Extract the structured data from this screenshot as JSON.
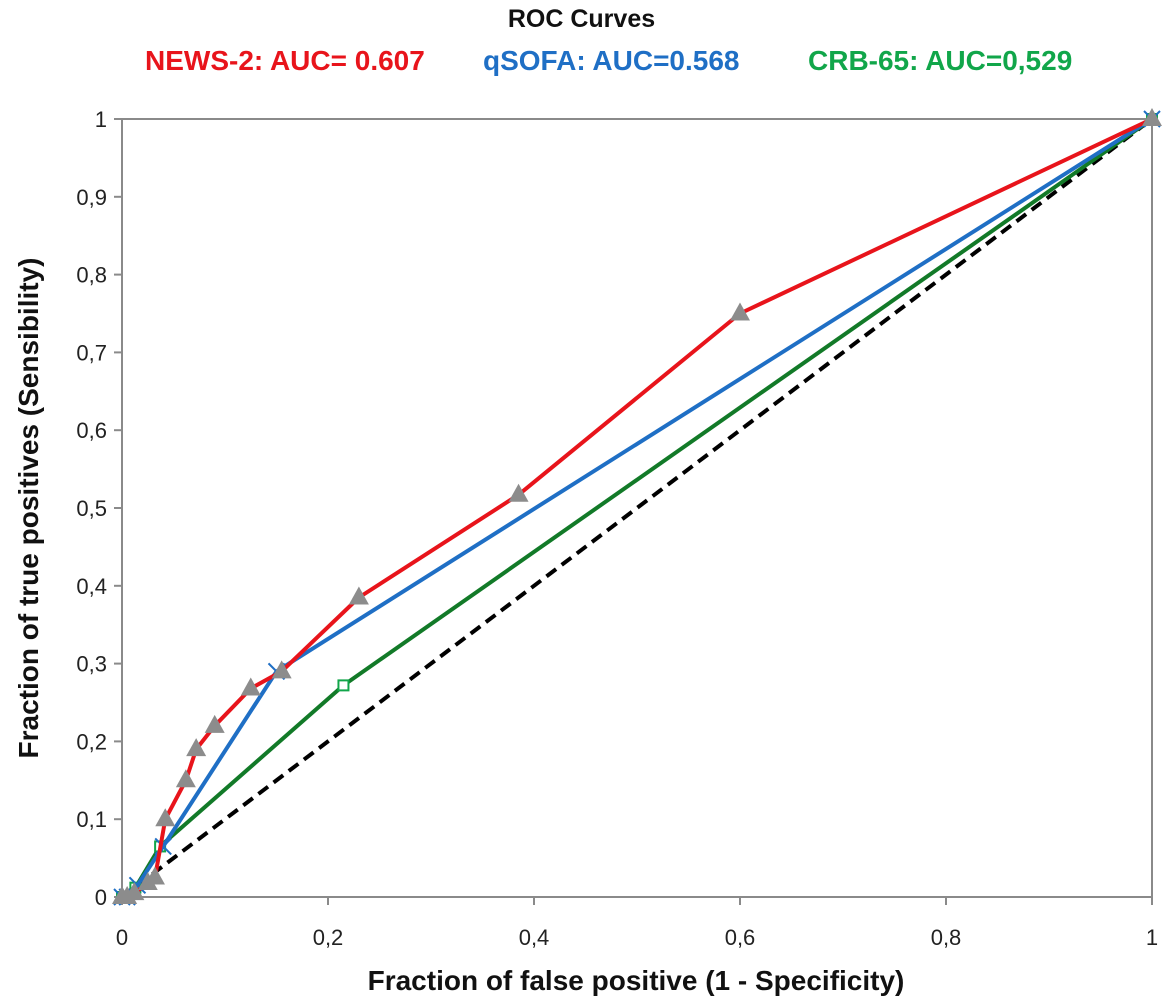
{
  "title": "ROC Curves",
  "subtitles": [
    {
      "text": "NEWS-2: AUC= 0.607",
      "color": "#e8141b"
    },
    {
      "text": "qSOFA: AUC=0.568",
      "color": "#1f6fc5"
    },
    {
      "text": "CRB-65: AUC=0,529",
      "color": "#11a64a"
    }
  ],
  "chart_data": {
    "type": "line",
    "title": "ROC Curves",
    "xlabel": "Fraction of false positive (1 - Specificity)",
    "ylabel": "Fraction of true positives (Sensibility)",
    "xlim": [
      0,
      1
    ],
    "ylim": [
      0,
      1
    ],
    "x_ticks": [
      "0",
      "0,2",
      "0,4",
      "0,6",
      "0,8",
      "1"
    ],
    "y_ticks": [
      "0",
      "0,1",
      "0,2",
      "0,3",
      "0,4",
      "0,5",
      "0,6",
      "0,7",
      "0,8",
      "0,9",
      "1"
    ],
    "grid": false,
    "series": [
      {
        "name": "NEWS-2",
        "color": "#e8141b",
        "marker": "triangle",
        "marker_color": "#8c8c8c",
        "points": [
          [
            0,
            0
          ],
          [
            0.005,
            0
          ],
          [
            0.012,
            0.005
          ],
          [
            0.025,
            0.018
          ],
          [
            0.032,
            0.025
          ],
          [
            0.042,
            0.1
          ],
          [
            0.062,
            0.15
          ],
          [
            0.072,
            0.19
          ],
          [
            0.09,
            0.22
          ],
          [
            0.125,
            0.268
          ],
          [
            0.155,
            0.29
          ],
          [
            0.23,
            0.385
          ],
          [
            0.385,
            0.517
          ],
          [
            0.6,
            0.75
          ],
          [
            1,
            1
          ]
        ]
      },
      {
        "name": "qSOFA",
        "color": "#1f6fc5",
        "marker": "x",
        "marker_color": "#1f6fc5",
        "points": [
          [
            0,
            0
          ],
          [
            0.005,
            0
          ],
          [
            0.015,
            0.015
          ],
          [
            0.04,
            0.065
          ],
          [
            0.15,
            0.29
          ],
          [
            1,
            1
          ]
        ]
      },
      {
        "name": "CRB-65",
        "color": "#127a28",
        "marker": "square",
        "marker_color": "#11a64a",
        "points": [
          [
            0,
            0
          ],
          [
            0.005,
            0
          ],
          [
            0.013,
            0.012
          ],
          [
            0.037,
            0.065
          ],
          [
            0.215,
            0.272
          ],
          [
            1,
            1
          ]
        ]
      },
      {
        "name": "Reference",
        "color": "#000000",
        "marker": "none",
        "dashed": true,
        "points": [
          [
            0,
            0
          ],
          [
            1,
            1
          ]
        ]
      }
    ]
  }
}
